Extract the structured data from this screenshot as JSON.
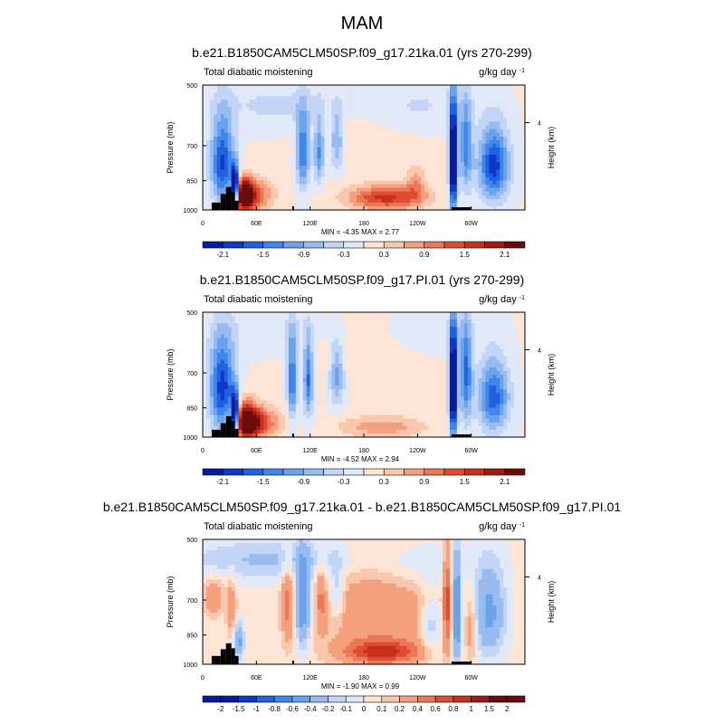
{
  "figure": {
    "title": "MAM"
  },
  "colors": {
    "neg": [
      "#081a9e",
      "#0c39c8",
      "#2160de",
      "#3f86ea",
      "#6aa2ee",
      "#98bcf0",
      "#c3d5f6",
      "#e1e9f8"
    ],
    "pos": [
      "#fde4d4",
      "#f9c7ac",
      "#f4a07f",
      "#ec7656",
      "#de4d33",
      "#c8301d",
      "#a01a14",
      "#6a0c0c"
    ],
    "topo": "#000000"
  },
  "chart_data": [
    {
      "type": "heatmap",
      "title": "b.e21.B1850CAM5CLM50SP.f09_g17.21ka.01 (yrs 270-299)",
      "left_label": "Total diabatic moistening",
      "units": "g/kg day",
      "units_exp": "-1",
      "ylabel": "Pressure (mb)",
      "ylabel_right": "Height (km)",
      "yticks": [
        "500",
        "700",
        "850",
        "1000"
      ],
      "xticks": [
        "0",
        "60E",
        "120E",
        "180",
        "120W",
        "60W"
      ],
      "right_ticks": [
        "4"
      ],
      "stats": "MIN = -4.35  MAX =  2.77",
      "colorbar_labels": [
        "-2.1",
        "-1.5",
        "-0.9",
        "-0.3",
        "0.3",
        "0.9",
        "1.5",
        "2.1"
      ],
      "blobs": [
        {
          "lon": 22,
          "p": 770,
          "slon": 9,
          "sp": 130,
          "v": -1.9
        },
        {
          "lon": 36,
          "p": 880,
          "slon": 3,
          "sp": 70,
          "v": -3.5
        },
        {
          "lon": 46,
          "p": 920,
          "slon": 8,
          "sp": 60,
          "v": 2.6
        },
        {
          "lon": 60,
          "p": 920,
          "slon": 14,
          "sp": 55,
          "v": 1.1
        },
        {
          "lon": 112,
          "p": 720,
          "slon": 5,
          "sp": 110,
          "v": -1.6
        },
        {
          "lon": 130,
          "p": 720,
          "slon": 4,
          "sp": 90,
          "v": -1.3
        },
        {
          "lon": 150,
          "p": 680,
          "slon": 5,
          "sp": 80,
          "v": -1.0
        },
        {
          "lon": 205,
          "p": 935,
          "slon": 30,
          "sp": 45,
          "v": 1.6
        },
        {
          "lon": 170,
          "p": 615,
          "slon": 40,
          "sp": 90,
          "v": 0.15
        },
        {
          "lon": 238,
          "p": 860,
          "slon": 8,
          "sp": 60,
          "v": 0.7
        },
        {
          "lon": 280,
          "p": 760,
          "slon": 3,
          "sp": 170,
          "v": -3.3
        },
        {
          "lon": 294,
          "p": 700,
          "slon": 5,
          "sp": 130,
          "v": -1.4
        },
        {
          "lon": 325,
          "p": 780,
          "slon": 12,
          "sp": 110,
          "v": -2.0
        },
        {
          "lon": 90,
          "p": 560,
          "slon": 60,
          "sp": 50,
          "v": -0.4
        },
        {
          "lon": 240,
          "p": 560,
          "slon": 40,
          "sp": 50,
          "v": -0.35
        }
      ],
      "topo": [
        {
          "lon0": 10,
          "lon1": 20,
          "p": 960
        },
        {
          "lon0": 20,
          "lon1": 26,
          "p": 915
        },
        {
          "lon0": 26,
          "lon1": 32,
          "p": 880
        },
        {
          "lon0": 32,
          "lon1": 36,
          "p": 905
        },
        {
          "lon0": 36,
          "lon1": 40,
          "p": 950
        },
        {
          "lon0": 100,
          "lon1": 102,
          "p": 980
        },
        {
          "lon0": 278,
          "lon1": 300,
          "p": 985
        }
      ]
    },
    {
      "type": "heatmap",
      "title": "b.e21.B1850CAM5CLM50SP.f09_g17.PI.01 (yrs 270-299)",
      "left_label": "Total diabatic moistening",
      "units": "g/kg day",
      "units_exp": "-1",
      "ylabel": "Pressure (mb)",
      "ylabel_right": "Height (km)",
      "yticks": [
        "500",
        "700",
        "850",
        "1000"
      ],
      "xticks": [
        "0",
        "60E",
        "120E",
        "180",
        "120W",
        "60W"
      ],
      "right_ticks": [
        "4"
      ],
      "stats": "MIN = -4.52  MAX =  2.94",
      "colorbar_labels": [
        "-2.1",
        "-1.5",
        "-0.9",
        "-0.3",
        "0.3",
        "0.9",
        "1.5",
        "2.1"
      ],
      "blobs": [
        {
          "lon": 22,
          "p": 760,
          "slon": 10,
          "sp": 140,
          "v": -2.0
        },
        {
          "lon": 36,
          "p": 880,
          "slon": 3,
          "sp": 70,
          "v": -3.6
        },
        {
          "lon": 48,
          "p": 915,
          "slon": 10,
          "sp": 65,
          "v": 2.5
        },
        {
          "lon": 65,
          "p": 925,
          "slon": 16,
          "sp": 55,
          "v": 1.2
        },
        {
          "lon": 100,
          "p": 720,
          "slon": 4,
          "sp": 120,
          "v": -1.6
        },
        {
          "lon": 118,
          "p": 720,
          "slon": 4,
          "sp": 110,
          "v": -1.6
        },
        {
          "lon": 150,
          "p": 700,
          "slon": 6,
          "sp": 90,
          "v": -1.1
        },
        {
          "lon": 200,
          "p": 945,
          "slon": 35,
          "sp": 40,
          "v": 0.8
        },
        {
          "lon": 170,
          "p": 600,
          "slon": 50,
          "sp": 80,
          "v": 0.3
        },
        {
          "lon": 280,
          "p": 750,
          "slon": 3,
          "sp": 170,
          "v": -3.4
        },
        {
          "lon": 294,
          "p": 700,
          "slon": 5,
          "sp": 140,
          "v": -1.6
        },
        {
          "lon": 325,
          "p": 800,
          "slon": 12,
          "sp": 110,
          "v": -1.7
        },
        {
          "lon": 90,
          "p": 560,
          "slon": 50,
          "sp": 50,
          "v": -0.35
        },
        {
          "lon": 245,
          "p": 560,
          "slon": 40,
          "sp": 50,
          "v": -0.3
        }
      ],
      "topo": [
        {
          "lon0": 10,
          "lon1": 20,
          "p": 960
        },
        {
          "lon0": 20,
          "lon1": 26,
          "p": 925
        },
        {
          "lon0": 26,
          "lon1": 32,
          "p": 890
        },
        {
          "lon0": 32,
          "lon1": 36,
          "p": 915
        },
        {
          "lon0": 36,
          "lon1": 40,
          "p": 955
        },
        {
          "lon0": 100,
          "lon1": 102,
          "p": 980
        },
        {
          "lon0": 278,
          "lon1": 300,
          "p": 985
        }
      ]
    },
    {
      "type": "heatmap",
      "title": "b.e21.B1850CAM5CLM50SP.f09_g17.21ka.01 - b.e21.B1850CAM5CLM50SP.f09_g17.PI.01",
      "left_label": "Total diabatic moistening",
      "units": "g/kg day",
      "units_exp": "-1",
      "ylabel": "Pressure (mb)",
      "ylabel_right": "Height (km)",
      "yticks": [
        "500",
        "700",
        "850",
        "1000"
      ],
      "xticks": [
        "0",
        "60E",
        "120E",
        "180",
        "120W",
        "60W"
      ],
      "right_ticks": [
        "4"
      ],
      "stats": "MIN = -1.90  MAX =  0.99",
      "colorbar_labels": [
        "-2",
        "-1.5",
        "-1",
        "-0.8",
        "-0.6",
        "-0.4",
        "-0.2",
        "-0.1",
        "0",
        "0.1",
        "0.2",
        "0.4",
        "0.6",
        "0.8",
        "1",
        "1.5",
        "2"
      ],
      "blobs": [
        {
          "lon": 12,
          "p": 690,
          "slon": 8,
          "sp": 50,
          "v": 0.35
        },
        {
          "lon": 32,
          "p": 740,
          "slon": 4,
          "sp": 90,
          "v": 0.3
        },
        {
          "lon": 40,
          "p": 880,
          "slon": 4,
          "sp": 60,
          "v": -0.5
        },
        {
          "lon": 95,
          "p": 720,
          "slon": 5,
          "sp": 120,
          "v": 0.4
        },
        {
          "lon": 112,
          "p": 720,
          "slon": 6,
          "sp": 120,
          "v": -0.7
        },
        {
          "lon": 132,
          "p": 700,
          "slon": 4,
          "sp": 90,
          "v": 0.3
        },
        {
          "lon": 150,
          "p": 680,
          "slon": 6,
          "sp": 80,
          "v": -0.3
        },
        {
          "lon": 195,
          "p": 760,
          "slon": 50,
          "sp": 150,
          "v": 0.35
        },
        {
          "lon": 200,
          "p": 935,
          "slon": 28,
          "sp": 40,
          "v": 0.8
        },
        {
          "lon": 255,
          "p": 800,
          "slon": 8,
          "sp": 100,
          "v": -0.3
        },
        {
          "lon": 273,
          "p": 700,
          "slon": 3,
          "sp": 150,
          "v": 0.6
        },
        {
          "lon": 284,
          "p": 760,
          "slon": 3,
          "sp": 150,
          "v": -0.8
        },
        {
          "lon": 300,
          "p": 820,
          "slon": 4,
          "sp": 100,
          "v": 0.3
        },
        {
          "lon": 320,
          "p": 750,
          "slon": 12,
          "sp": 130,
          "v": -0.5
        },
        {
          "lon": 80,
          "p": 560,
          "slon": 70,
          "sp": 45,
          "v": -0.25
        },
        {
          "lon": 240,
          "p": 580,
          "slon": 35,
          "sp": 50,
          "v": -0.15
        }
      ],
      "topo": [
        {
          "lon0": 10,
          "lon1": 20,
          "p": 955
        },
        {
          "lon0": 20,
          "lon1": 26,
          "p": 920
        },
        {
          "lon0": 26,
          "lon1": 32,
          "p": 890
        },
        {
          "lon0": 32,
          "lon1": 36,
          "p": 915
        },
        {
          "lon0": 36,
          "lon1": 40,
          "p": 955
        },
        {
          "lon0": 100,
          "lon1": 102,
          "p": 980
        },
        {
          "lon0": 278,
          "lon1": 300,
          "p": 985
        }
      ]
    }
  ]
}
